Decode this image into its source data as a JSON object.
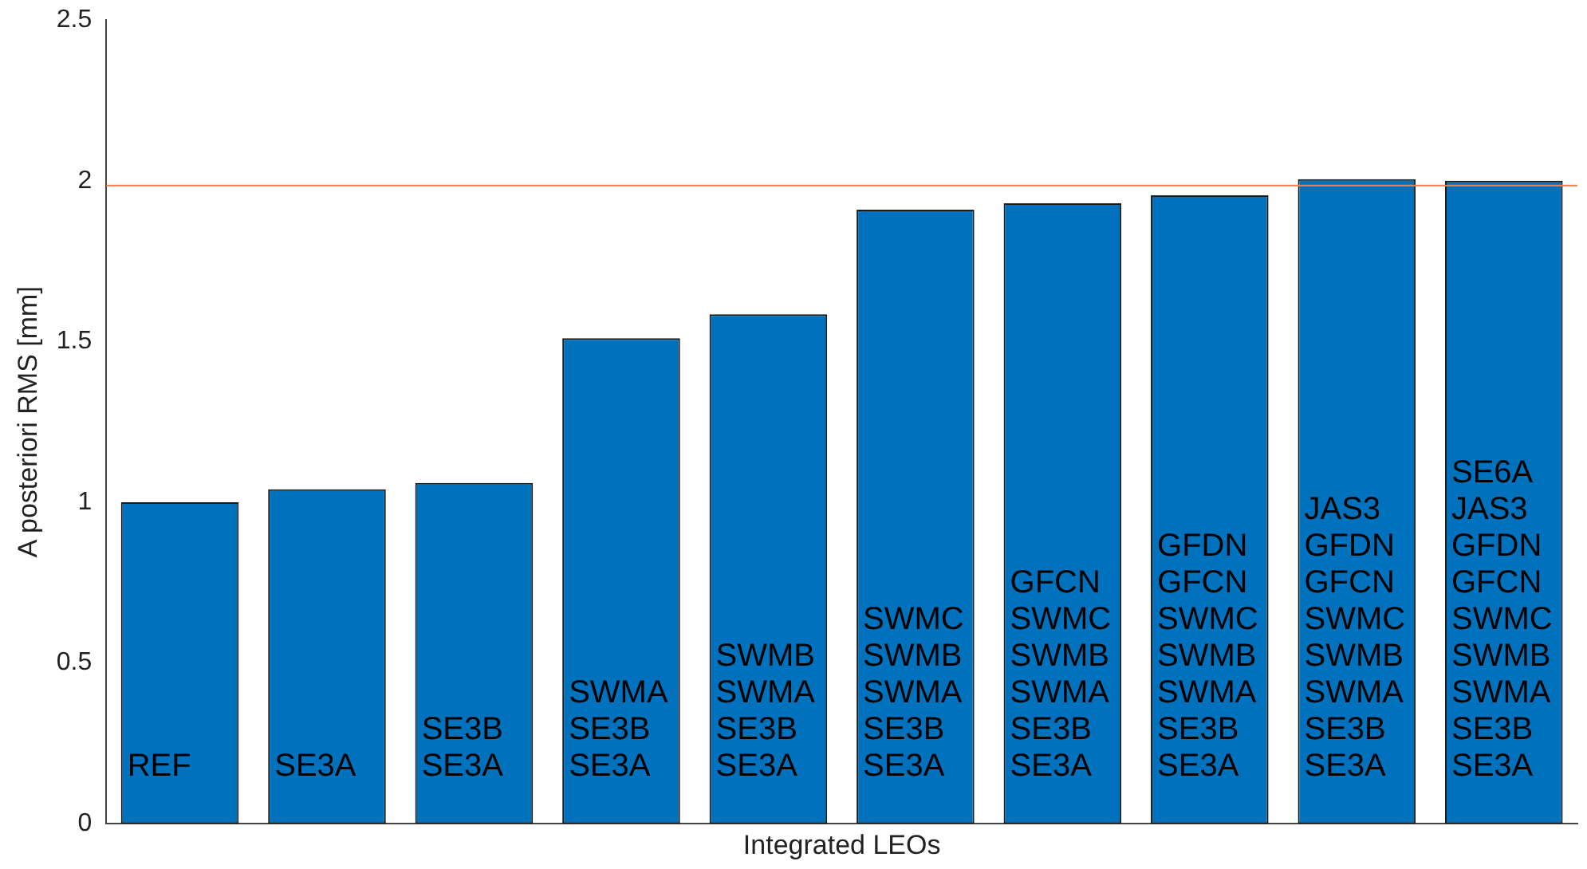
{
  "chart_data": {
    "type": "bar",
    "xlabel": "Integrated LEOs",
    "ylabel": "A posteriori RMS [mm]",
    "categories": [
      "REF",
      "SE3A",
      "SE3B\nSE3A",
      "SWMA\nSE3B\nSE3A",
      "SWMB\nSWMA\nSE3B\nSE3A",
      "SWMC\nSWMB\nSWMA\nSE3B\nSE3A",
      "GFCN\nSWMC\nSWMB\nSWMA\nSE3B\nSE3A",
      "GFDN\nGFCN\nSWMC\nSWMB\nSWMA\nSE3B\nSE3A",
      "JAS3\nGFDN\nGFCN\nSWMC\nSWMB\nSWMA\nSE3B\nSE3A",
      "SE6A\nJAS3\nGFDN\nGFCN\nSWMC\nSWMB\nSWMA\nSE3B\nSE3A"
    ],
    "values": [
      1.0,
      1.04,
      1.06,
      1.51,
      1.585,
      1.91,
      1.93,
      1.955,
      2.005,
      2.0
    ],
    "color": "#0072bd",
    "ylim": [
      0,
      2.5
    ],
    "yticks": [
      0,
      0.5,
      1,
      1.5,
      2,
      2.5
    ],
    "ref_lines": [
      {
        "axis": "y",
        "value": 1.985,
        "color": "#f08050"
      }
    ],
    "grid": false,
    "legend": false
  }
}
